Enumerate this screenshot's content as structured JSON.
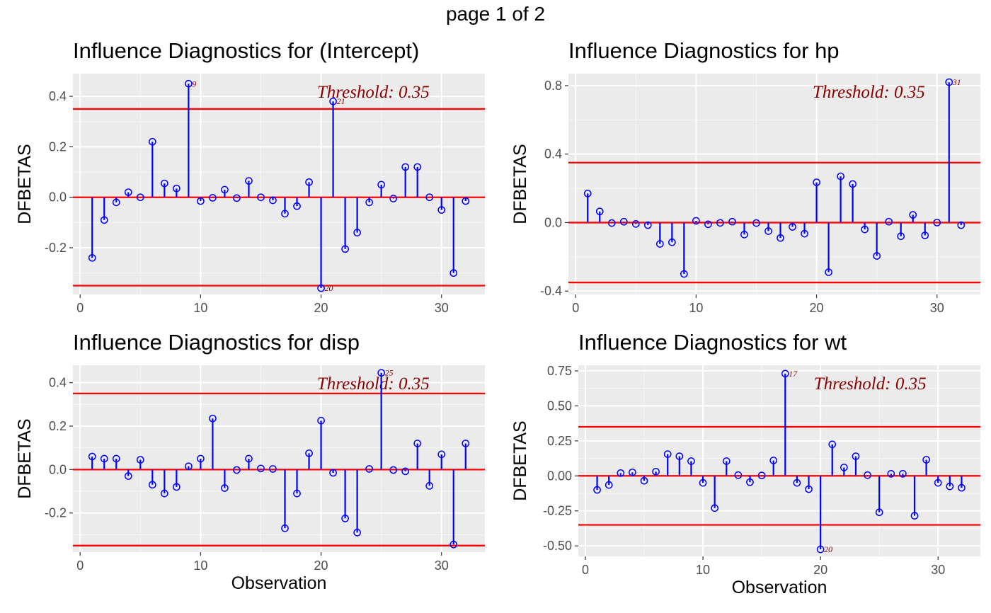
{
  "page_title": "page 1 of 2",
  "colors": {
    "panel_bg": "#ebebeb",
    "grid_major": "#ffffff",
    "stem": "#0000ff",
    "threshold_line": "#ff0000",
    "label": "#8b0000"
  },
  "chart_data": [
    {
      "type": "lollipop",
      "title": "Influence Diagnostics for (Intercept)",
      "xlabel": "Observation",
      "ylabel": "DFBETAS",
      "threshold": 0.35,
      "threshold_label": "Threshold: 0.35",
      "x_ticks": [
        0,
        10,
        20,
        30
      ],
      "y_ticks": [
        -0.2,
        0.0,
        0.2,
        0.4
      ],
      "y_tick_labels": [
        "-0.2",
        "0.0",
        "0.2",
        "0.4"
      ],
      "xlim": [
        -0.6,
        33.6
      ],
      "ylim": [
        -0.385,
        0.49
      ],
      "x": [
        1,
        2,
        3,
        4,
        5,
        6,
        7,
        8,
        9,
        10,
        11,
        12,
        13,
        14,
        15,
        16,
        17,
        18,
        19,
        20,
        21,
        22,
        23,
        24,
        25,
        26,
        27,
        28,
        29,
        30,
        31,
        32
      ],
      "values": [
        -0.24,
        -0.09,
        -0.02,
        0.02,
        0.0,
        0.22,
        0.055,
        0.035,
        0.45,
        -0.015,
        -0.002,
        0.03,
        -0.003,
        0.065,
        0.0,
        -0.012,
        -0.065,
        -0.035,
        0.06,
        -0.36,
        0.38,
        -0.205,
        -0.14,
        -0.02,
        0.05,
        -0.005,
        0.12,
        0.12,
        0.0,
        -0.05,
        -0.3,
        -0.015
      ],
      "labeled_points": [
        {
          "x": 9,
          "label": "9"
        },
        {
          "x": 21,
          "label": "21"
        },
        {
          "x": 20,
          "label": "20"
        }
      ]
    },
    {
      "type": "lollipop",
      "title": "Influence Diagnostics for hp",
      "xlabel": "Observation",
      "ylabel": "DFBETAS",
      "threshold": 0.35,
      "threshold_label": "Threshold: 0.35",
      "x_ticks": [
        0,
        10,
        20,
        30
      ],
      "y_ticks": [
        -0.4,
        0.0,
        0.4,
        0.8
      ],
      "y_tick_labels": [
        "-0.4",
        "0.0",
        "0.4",
        "0.8"
      ],
      "xlim": [
        -0.6,
        33.6
      ],
      "ylim": [
        -0.42,
        0.87
      ],
      "x": [
        1,
        2,
        3,
        4,
        5,
        6,
        7,
        8,
        9,
        10,
        11,
        12,
        13,
        14,
        15,
        16,
        17,
        18,
        19,
        20,
        21,
        22,
        23,
        24,
        25,
        26,
        27,
        28,
        29,
        30,
        31,
        32
      ],
      "values": [
        0.17,
        0.065,
        -0.003,
        0.005,
        -0.008,
        -0.015,
        -0.125,
        -0.115,
        -0.3,
        0.01,
        -0.01,
        -0.002,
        0.005,
        -0.07,
        -0.003,
        -0.05,
        -0.09,
        -0.025,
        -0.065,
        0.235,
        -0.29,
        0.27,
        0.225,
        -0.04,
        -0.195,
        0.005,
        -0.08,
        0.045,
        -0.075,
        0.0,
        0.82,
        -0.015
      ],
      "labeled_points": [
        {
          "x": 31,
          "label": "31"
        }
      ]
    },
    {
      "type": "lollipop",
      "title": "Influence Diagnostics for disp",
      "xlabel": "Observation",
      "ylabel": "DFBETAS",
      "threshold": 0.35,
      "threshold_label": "Threshold: 0.35",
      "x_ticks": [
        0,
        10,
        20,
        30
      ],
      "y_ticks": [
        -0.2,
        0.0,
        0.2,
        0.4
      ],
      "y_tick_labels": [
        "-0.2",
        "0.0",
        "0.2",
        "0.4"
      ],
      "xlim": [
        -0.6,
        33.6
      ],
      "ylim": [
        -0.38,
        0.48
      ],
      "x": [
        1,
        2,
        3,
        4,
        5,
        6,
        7,
        8,
        9,
        10,
        11,
        12,
        13,
        14,
        15,
        16,
        17,
        18,
        19,
        20,
        21,
        22,
        23,
        24,
        25,
        26,
        27,
        28,
        29,
        30,
        31,
        32
      ],
      "values": [
        0.06,
        0.05,
        0.05,
        -0.03,
        0.045,
        -0.07,
        -0.11,
        -0.08,
        0.015,
        0.05,
        0.235,
        -0.085,
        -0.002,
        0.05,
        0.005,
        0.003,
        -0.27,
        -0.11,
        0.075,
        0.225,
        -0.015,
        -0.225,
        -0.29,
        0.003,
        0.445,
        -0.002,
        -0.008,
        0.12,
        -0.075,
        0.07,
        -0.345,
        0.12
      ],
      "labeled_points": [
        {
          "x": 25,
          "label": "25"
        }
      ]
    },
    {
      "type": "lollipop",
      "title": "Influence Diagnostics for wt",
      "xlabel": "Observation",
      "ylabel": "DFBETAS",
      "threshold": 0.35,
      "threshold_label": "Threshold: 0.35",
      "x_ticks": [
        0,
        10,
        20,
        30
      ],
      "y_ticks": [
        -0.5,
        -0.25,
        0.0,
        0.25,
        0.5,
        0.75
      ],
      "y_tick_labels": [
        "-0.50",
        "-0.25",
        "0.00",
        "0.25",
        "0.50",
        "0.75"
      ],
      "xlim": [
        -0.6,
        33.6
      ],
      "ylim": [
        -0.575,
        0.79
      ],
      "x": [
        1,
        2,
        3,
        4,
        5,
        6,
        7,
        8,
        9,
        10,
        11,
        12,
        13,
        14,
        15,
        16,
        17,
        18,
        19,
        20,
        21,
        22,
        23,
        24,
        25,
        26,
        27,
        28,
        29,
        30,
        31,
        32
      ],
      "values": [
        -0.1,
        -0.065,
        0.02,
        0.025,
        -0.035,
        0.03,
        0.155,
        0.14,
        0.105,
        -0.05,
        -0.23,
        0.105,
        0.005,
        -0.045,
        0.003,
        0.11,
        0.73,
        -0.05,
        -0.095,
        -0.525,
        0.225,
        0.06,
        0.14,
        0.005,
        -0.26,
        0.015,
        0.015,
        -0.285,
        0.115,
        -0.05,
        -0.075,
        -0.085
      ],
      "labeled_points": [
        {
          "x": 17,
          "label": "17"
        },
        {
          "x": 20,
          "label": "20"
        }
      ]
    }
  ]
}
